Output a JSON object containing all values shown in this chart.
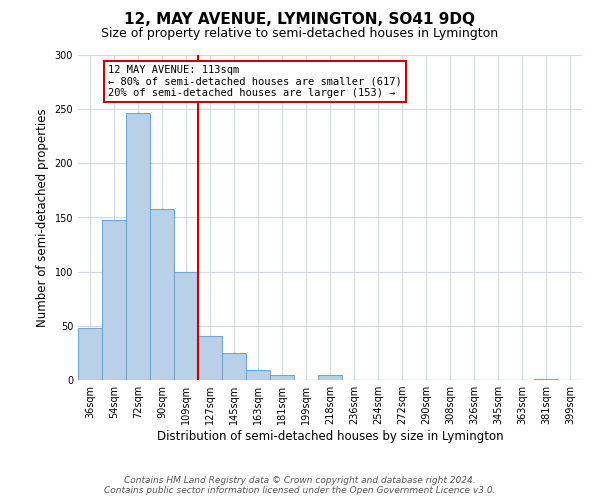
{
  "title": "12, MAY AVENUE, LYMINGTON, SO41 9DQ",
  "subtitle": "Size of property relative to semi-detached houses in Lymington",
  "xlabel": "Distribution of semi-detached houses by size in Lymington",
  "ylabel": "Number of semi-detached properties",
  "bin_labels": [
    "36sqm",
    "54sqm",
    "72sqm",
    "90sqm",
    "109sqm",
    "127sqm",
    "145sqm",
    "163sqm",
    "181sqm",
    "199sqm",
    "218sqm",
    "236sqm",
    "254sqm",
    "272sqm",
    "290sqm",
    "308sqm",
    "326sqm",
    "345sqm",
    "363sqm",
    "381sqm",
    "399sqm"
  ],
  "bin_values": [
    48,
    148,
    246,
    158,
    100,
    41,
    25,
    9,
    5,
    0,
    5,
    0,
    0,
    0,
    0,
    0,
    0,
    0,
    0,
    1,
    0
  ],
  "bar_color": "#b8d0e8",
  "bar_edge_color": "#6fa8d6",
  "vline_x": 4.5,
  "vline_color": "#cc0000",
  "annotation_lines": [
    "12 MAY AVENUE: 113sqm",
    "← 80% of semi-detached houses are smaller (617)",
    "20% of semi-detached houses are larger (153) →"
  ],
  "annotation_box_color": "#ffffff",
  "annotation_box_edge_color": "#cc0000",
  "ylim": [
    0,
    300
  ],
  "yticks": [
    0,
    50,
    100,
    150,
    200,
    250,
    300
  ],
  "footer_line1": "Contains HM Land Registry data © Crown copyright and database right 2024.",
  "footer_line2": "Contains public sector information licensed under the Open Government Licence v3.0.",
  "bg_color": "#ffffff",
  "grid_color": "#d0d8e8",
  "title_fontsize": 11,
  "subtitle_fontsize": 9,
  "axis_label_fontsize": 8.5,
  "tick_fontsize": 7,
  "annotation_fontsize": 7.5,
  "footer_fontsize": 6.5
}
